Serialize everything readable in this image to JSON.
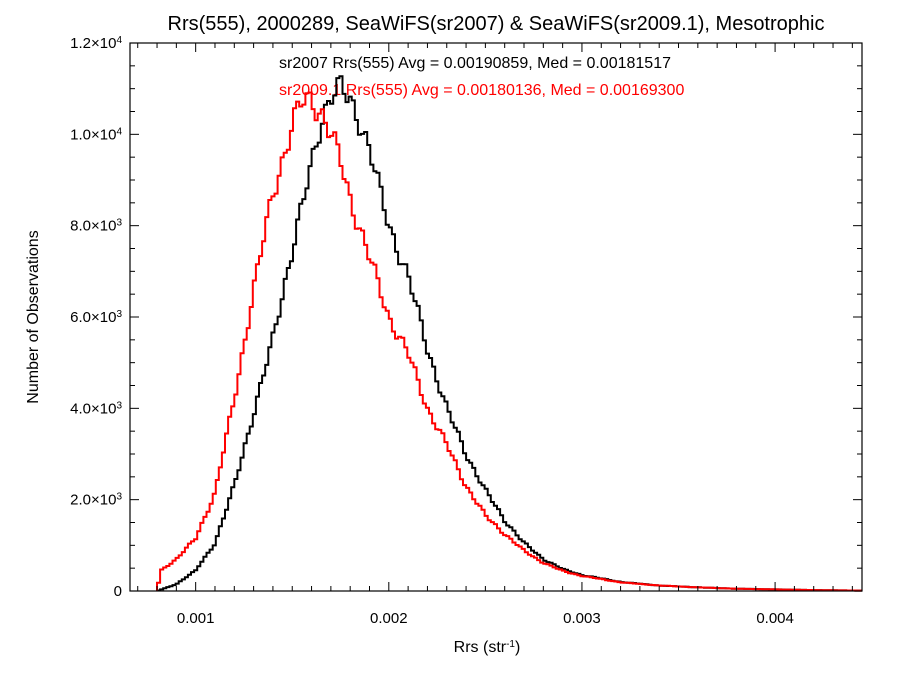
{
  "chart_data": {
    "type": "histogram-step",
    "title": "Rrs(555), 2000289, SeaWiFS(sr2007) & SeaWiFS(sr2009.1), Mesotrophic",
    "xlabel": {
      "base": "Rrs (str",
      "sup": "-1",
      "close": ")"
    },
    "ylabel": "Number of Observations",
    "xlim": [
      0.00066,
      0.00445
    ],
    "ylim": [
      0,
      12000
    ],
    "x_ticks": [
      {
        "value": 0.001,
        "label": "0.001"
      },
      {
        "value": 0.002,
        "label": "0.002"
      },
      {
        "value": 0.003,
        "label": "0.003"
      },
      {
        "value": 0.004,
        "label": "0.004"
      }
    ],
    "y_ticks": [
      {
        "value": 0,
        "mant": "0",
        "exp": ""
      },
      {
        "value": 2000,
        "mant": "2.0×10",
        "exp": "3"
      },
      {
        "value": 4000,
        "mant": "4.0×10",
        "exp": "3"
      },
      {
        "value": 6000,
        "mant": "6.0×10",
        "exp": "3"
      },
      {
        "value": 8000,
        "mant": "8.0×10",
        "exp": "3"
      },
      {
        "value": 10000,
        "mant": "1.0×10",
        "exp": "4"
      },
      {
        "value": 12000,
        "mant": "1.2×10",
        "exp": "4"
      }
    ],
    "annotations": [
      {
        "text": "sr2007 Rrs(555) Avg = 0.00190859, Med = 0.00181517",
        "color": "#000000"
      },
      {
        "text": "sr2009.1 Rrs(555) Avg = 0.00180136, Med = 0.00169300",
        "color": "#ff0000"
      }
    ],
    "series": [
      {
        "color": "#000000",
        "points": [
          [
            0.0008,
            0
          ],
          [
            0.0009,
            150
          ],
          [
            0.001,
            450
          ],
          [
            0.0011,
            1050
          ],
          [
            0.0012,
            2300
          ],
          [
            0.0013,
            3900
          ],
          [
            0.0014,
            5500
          ],
          [
            0.0015,
            7500
          ],
          [
            0.0016,
            9300
          ],
          [
            0.00165,
            10300
          ],
          [
            0.0017,
            10900
          ],
          [
            0.00175,
            11000
          ],
          [
            0.0018,
            10700
          ],
          [
            0.00185,
            10300
          ],
          [
            0.0019,
            9700
          ],
          [
            0.00195,
            8800
          ],
          [
            0.002,
            8000
          ],
          [
            0.0021,
            6900
          ],
          [
            0.0022,
            5300
          ],
          [
            0.0023,
            4000
          ],
          [
            0.0024,
            3000
          ],
          [
            0.0025,
            2200
          ],
          [
            0.0026,
            1550
          ],
          [
            0.0027,
            1050
          ],
          [
            0.0028,
            700
          ],
          [
            0.0029,
            480
          ],
          [
            0.003,
            350
          ],
          [
            0.0032,
            200
          ],
          [
            0.0034,
            120
          ],
          [
            0.0036,
            80
          ],
          [
            0.0038,
            50
          ],
          [
            0.004,
            35
          ],
          [
            0.0042,
            20
          ],
          [
            0.00445,
            8
          ]
        ]
      },
      {
        "color": "#ff0000",
        "points": [
          [
            0.0008,
            0
          ],
          [
            0.00082,
            450
          ],
          [
            0.0009,
            700
          ],
          [
            0.001,
            1150
          ],
          [
            0.0011,
            2150
          ],
          [
            0.0012,
            4200
          ],
          [
            0.0013,
            6600
          ],
          [
            0.0014,
            8700
          ],
          [
            0.0015,
            10200
          ],
          [
            0.00155,
            10700
          ],
          [
            0.0016,
            10750
          ],
          [
            0.00165,
            10500
          ],
          [
            0.0017,
            10000
          ],
          [
            0.00175,
            9400
          ],
          [
            0.0018,
            8600
          ],
          [
            0.0019,
            7300
          ],
          [
            0.002,
            6000
          ],
          [
            0.0021,
            5200
          ],
          [
            0.0022,
            4000
          ],
          [
            0.0023,
            3200
          ],
          [
            0.0024,
            2300
          ],
          [
            0.0025,
            1650
          ],
          [
            0.0026,
            1250
          ],
          [
            0.0027,
            880
          ],
          [
            0.0028,
            620
          ],
          [
            0.0029,
            440
          ],
          [
            0.003,
            330
          ],
          [
            0.0032,
            190
          ],
          [
            0.0034,
            120
          ],
          [
            0.0036,
            80
          ],
          [
            0.0038,
            50
          ],
          [
            0.004,
            35
          ],
          [
            0.0042,
            20
          ],
          [
            0.00445,
            8
          ]
        ]
      }
    ]
  }
}
